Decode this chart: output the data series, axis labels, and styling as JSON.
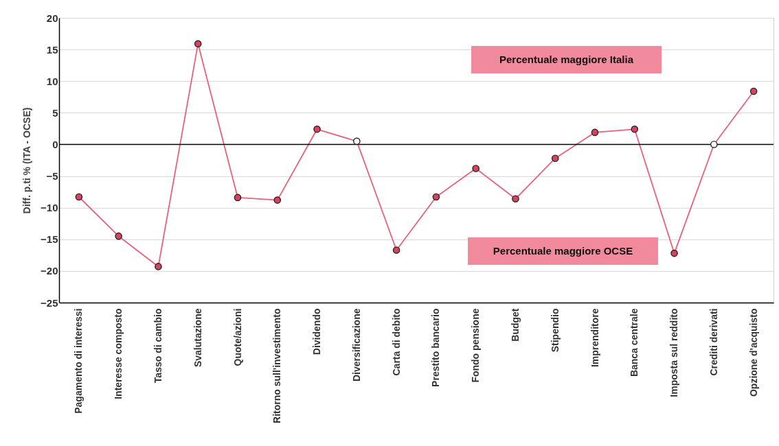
{
  "chart_data": {
    "type": "line",
    "ylabel": "Diff. p.ti % (ITA - OCSE)",
    "categories": [
      "Pagamento di interessi",
      "Interesse composto",
      "Tasso di cambio",
      "Svalutazione",
      "Quote/azioni",
      "Ritorno sull'investimento",
      "Dividendo",
      "Diversificazione",
      "Carta di debito",
      "Prestito bancario",
      "Fondo pensione",
      "Budget",
      "Stipendio",
      "Imprenditore",
      "Banca centrale",
      "Imposta sul reddito",
      "Crediti derivati",
      "Opzione d'acquisto"
    ],
    "series": [
      {
        "color": "#e8607a",
        "values": [
          -8.3,
          -14.5,
          -19.3,
          15.9,
          -8.4,
          -8.8,
          2.4,
          0.5,
          -16.7,
          -8.3,
          -3.8,
          -8.6,
          -2.2,
          1.9,
          2.4,
          -17.2,
          0,
          8.4
        ],
        "colors": [
          "#d9425f",
          "#d9425f",
          "#d9425f",
          "#d9425f",
          "#d9425f",
          "#d9425f",
          "#d9425f",
          "#ffffff",
          "#d9425f",
          "#d9425f",
          "#d9425f",
          "#d9425f",
          "#d9425f",
          "#d9425f",
          "#d9425f",
          "#d9425f",
          "#ffffff",
          "#d9425f"
        ]
      }
    ],
    "ylim": [
      -25,
      20
    ],
    "yticks": [
      -25,
      -20,
      -15,
      -10,
      -5,
      0,
      5,
      10,
      15,
      20
    ],
    "grid": "y",
    "marker": "circle",
    "ref_lines": [
      {
        "axis": "y",
        "value": 0,
        "color": "#000000"
      }
    ],
    "annotations": [
      "Percentuale maggiore Italia",
      "Percentuale maggiore OCSE"
    ]
  }
}
